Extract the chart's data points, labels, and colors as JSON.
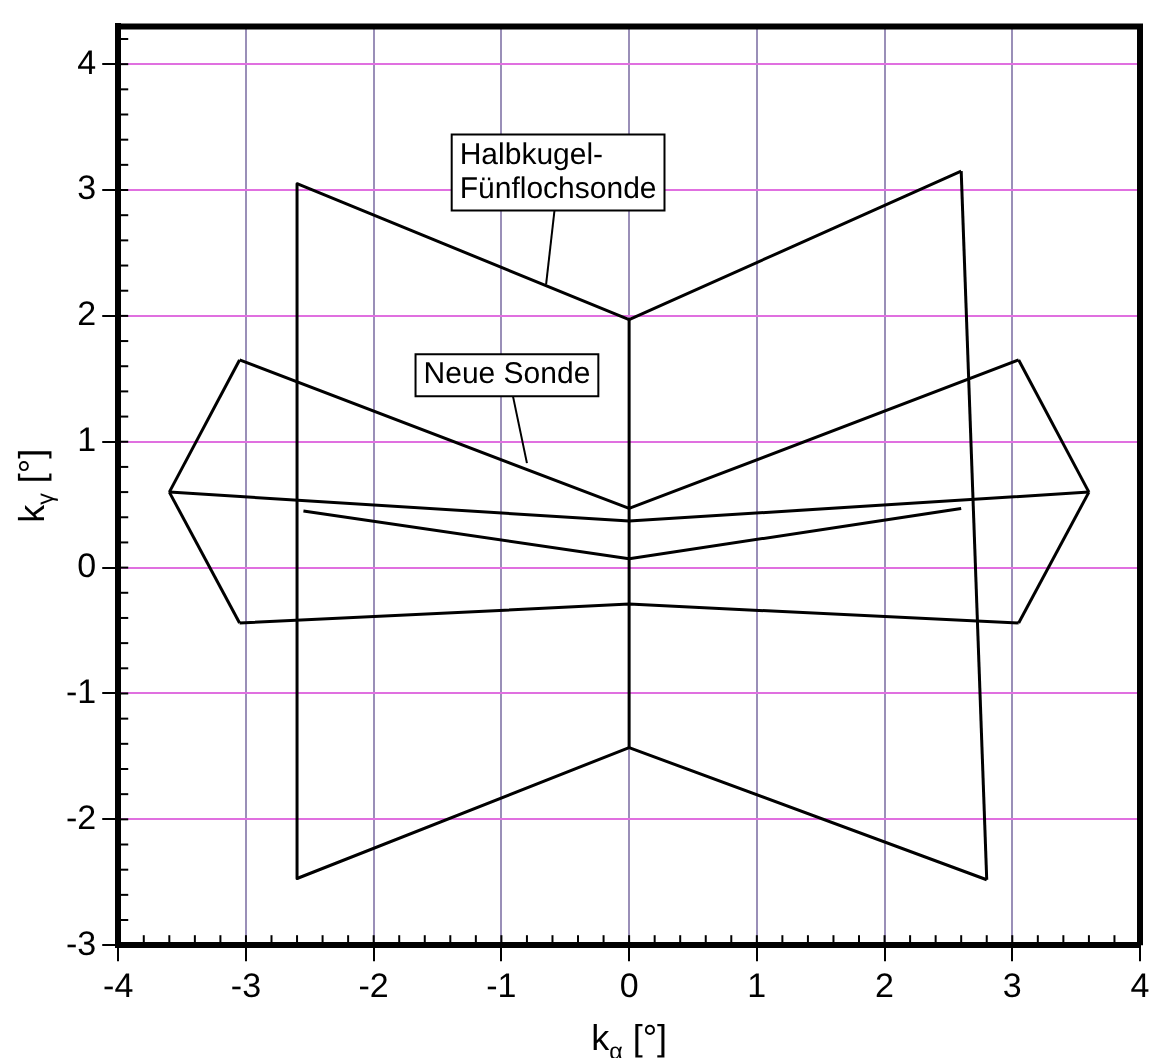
{
  "chart_data": {
    "type": "line",
    "xlabel": "k$_{α}$ [°]",
    "ylabel": "k$_{γ}$ [°]",
    "xlim": [
      -4,
      4
    ],
    "ylim": [
      -3,
      4.3
    ],
    "xticks": [
      -4,
      -3,
      -2,
      -1,
      0,
      1,
      2,
      3,
      4
    ],
    "yticks": [
      -3,
      -2,
      -1,
      0,
      1,
      2,
      3,
      4
    ],
    "grid": true,
    "legend": false,
    "marker": "none",
    "line_style": "solid",
    "series": [
      {
        "color": "#000000",
        "x": [
          -2.6,
          0,
          2.6
        ],
        "values": [
          3.05,
          1.97,
          3.15
        ]
      },
      {
        "color": "#000000",
        "x": [
          2.6,
          2.8
        ],
        "values": [
          3.15,
          -2.48
        ]
      },
      {
        "color": "#000000",
        "x": [
          -2.6,
          0,
          2.8
        ],
        "values": [
          -2.47,
          -1.43,
          -2.48
        ]
      },
      {
        "color": "#000000",
        "x": [
          -2.6,
          -2.6
        ],
        "values": [
          3.05,
          -2.47
        ]
      },
      {
        "color": "#000000",
        "x": [
          0,
          0
        ],
        "values": [
          1.97,
          -1.43
        ]
      },
      {
        "color": "#000000",
        "x": [
          -2.55,
          0,
          2.6
        ],
        "values": [
          0.45,
          0.07,
          0.47
        ]
      },
      {
        "color": "#000000",
        "x": [
          -3.05,
          0,
          3.05
        ],
        "values": [
          1.65,
          0.47,
          1.65
        ]
      },
      {
        "color": "#000000",
        "x": [
          -3.05,
          0,
          3.05
        ],
        "values": [
          -0.44,
          -0.29,
          -0.44
        ]
      },
      {
        "color": "#000000",
        "x": [
          -3.6,
          -3.05
        ],
        "values": [
          0.6,
          1.65
        ]
      },
      {
        "color": "#000000",
        "x": [
          -3.6,
          -3.05
        ],
        "values": [
          0.6,
          -0.44
        ]
      },
      {
        "color": "#000000",
        "x": [
          3.05,
          3.6
        ],
        "values": [
          1.65,
          0.6
        ]
      },
      {
        "color": "#000000",
        "x": [
          3.05,
          3.6
        ],
        "values": [
          -0.44,
          0.6
        ]
      },
      {
        "color": "#000000",
        "x": [
          -3.6,
          0,
          3.6
        ],
        "values": [
          0.6,
          0.37,
          0.6
        ]
      }
    ],
    "annotations": [
      {
        "text": "Halbkugel-\nFünflochsonde",
        "x": -0.65,
        "y": 2.25
      },
      {
        "text": "Neue Sonde",
        "x": -0.8,
        "y": 0.83
      }
    ]
  }
}
